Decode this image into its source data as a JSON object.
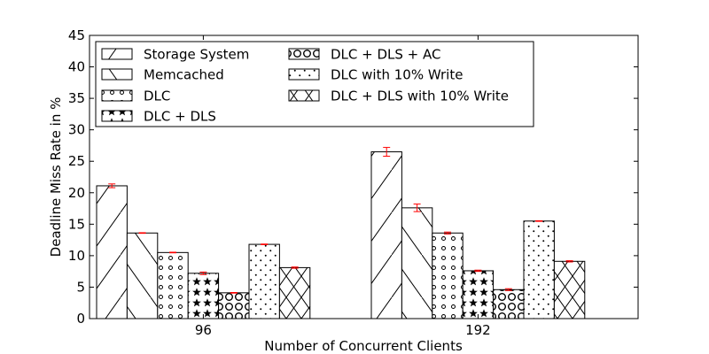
{
  "chart_data": {
    "type": "bar",
    "title": "",
    "xlabel": "Number of Concurrent Clients",
    "ylabel": "Deadline Miss Rate in %",
    "ylim": [
      0,
      45
    ],
    "yticks": [
      0,
      5,
      10,
      15,
      20,
      25,
      30,
      35,
      40,
      45
    ],
    "categories": [
      "96",
      "192"
    ],
    "legend_placement": "top-left",
    "error_bar_color": "#ff0000",
    "series": [
      {
        "name": "Storage System",
        "pattern": "forward-slash",
        "values": [
          21.1,
          26.5
        ],
        "errors": [
          0.3,
          0.7
        ]
      },
      {
        "name": "Memcached",
        "pattern": "back-slash",
        "values": [
          13.6,
          17.6
        ],
        "errors": [
          0.05,
          0.6
        ]
      },
      {
        "name": "DLC",
        "pattern": "small-circles",
        "values": [
          10.5,
          13.6
        ],
        "errors": [
          0.05,
          0.15
        ]
      },
      {
        "name": "DLC + DLS",
        "pattern": "stars",
        "values": [
          7.2,
          7.6
        ],
        "errors": [
          0.2,
          0.1
        ]
      },
      {
        "name": "DLC + DLS + AC",
        "pattern": "large-circles",
        "values": [
          4.1,
          4.6
        ],
        "errors": [
          0.05,
          0.15
        ]
      },
      {
        "name": "DLC with 10% Write",
        "pattern": "dots",
        "values": [
          11.8,
          15.5
        ],
        "errors": [
          0.05,
          0.05
        ]
      },
      {
        "name": "DLC + DLS with 10% Write",
        "pattern": "crosshatch",
        "values": [
          8.1,
          9.1
        ],
        "errors": [
          0.1,
          0.1
        ]
      }
    ]
  }
}
